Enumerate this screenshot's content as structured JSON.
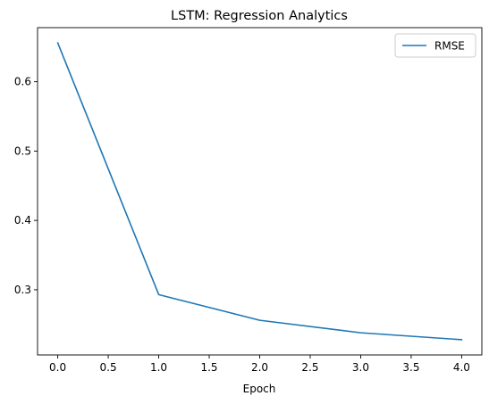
{
  "chart_data": {
    "type": "line",
    "title": "LSTM: Regression Analytics",
    "xlabel": "Epoch",
    "ylabel": "",
    "x": [
      0,
      1,
      2,
      3,
      4
    ],
    "series": [
      {
        "name": "RMSE",
        "values": [
          0.656,
          0.293,
          0.256,
          0.238,
          0.228
        ],
        "color": "#1f77b4"
      }
    ],
    "xlim": [
      -0.2,
      4.2
    ],
    "ylim": [
      0.206,
      0.678
    ],
    "xticks": [
      0.0,
      0.5,
      1.0,
      1.5,
      2.0,
      2.5,
      3.0,
      3.5,
      4.0
    ],
    "xtick_labels": [
      "0.0",
      "0.5",
      "1.0",
      "1.5",
      "2.0",
      "2.5",
      "3.0",
      "3.5",
      "4.0"
    ],
    "yticks": [
      0.3,
      0.4,
      0.5,
      0.6
    ],
    "ytick_labels": [
      "0.3",
      "0.4",
      "0.5",
      "0.6"
    ],
    "grid": false,
    "legend_position": "top-right"
  }
}
